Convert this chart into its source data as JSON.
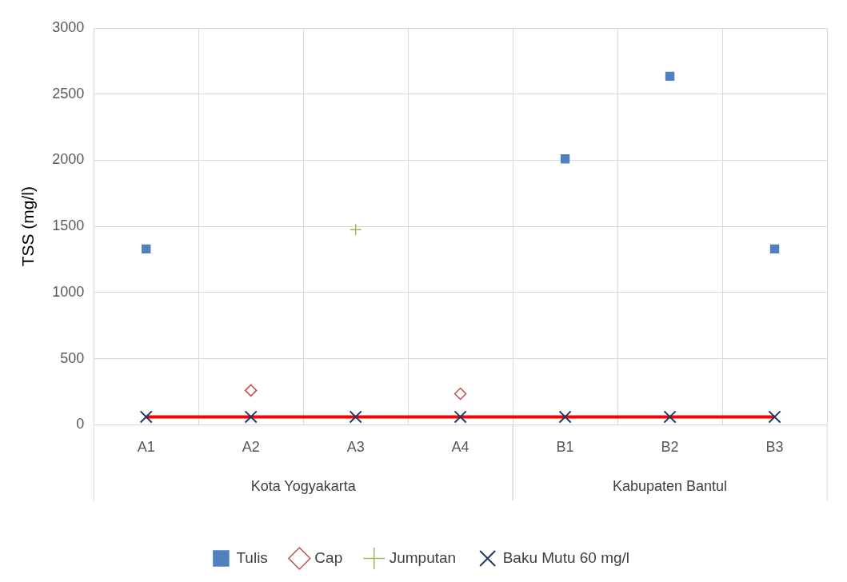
{
  "chart_data": {
    "type": "scatter",
    "ylabel": "TSS (mg/l)",
    "categories": [
      "A1",
      "A2",
      "A3",
      "A4",
      "B1",
      "B2",
      "B3"
    ],
    "series": [
      {
        "name": "Tulis",
        "color": "#4f81bd",
        "marker": "square",
        "values": [
          1330,
          null,
          null,
          null,
          2010,
          2635,
          1330
        ]
      },
      {
        "name": "Cap",
        "color": "#c0504d",
        "marker": "diamond",
        "values": [
          null,
          260,
          null,
          235,
          null,
          null,
          null
        ]
      },
      {
        "name": "Jumputan",
        "color": "#9bbb59",
        "marker": "cross",
        "values": [
          null,
          null,
          1475,
          null,
          null,
          null,
          null
        ]
      },
      {
        "name": "Baku Mutu 60 mg/l",
        "type": "line",
        "color": "#ff0000",
        "marker": "cross",
        "values": [
          60,
          60,
          60,
          60,
          60,
          60,
          60
        ]
      }
    ],
    "annotations": [
      "Kota Yogyakarta",
      "Kabupaten Bantul"
    ],
    "ylim": [
      0,
      3000
    ],
    "yticks": [
      0,
      500,
      1000,
      1500,
      2000,
      2500,
      3000
    ],
    "grid": true,
    "legend": "bottom"
  }
}
